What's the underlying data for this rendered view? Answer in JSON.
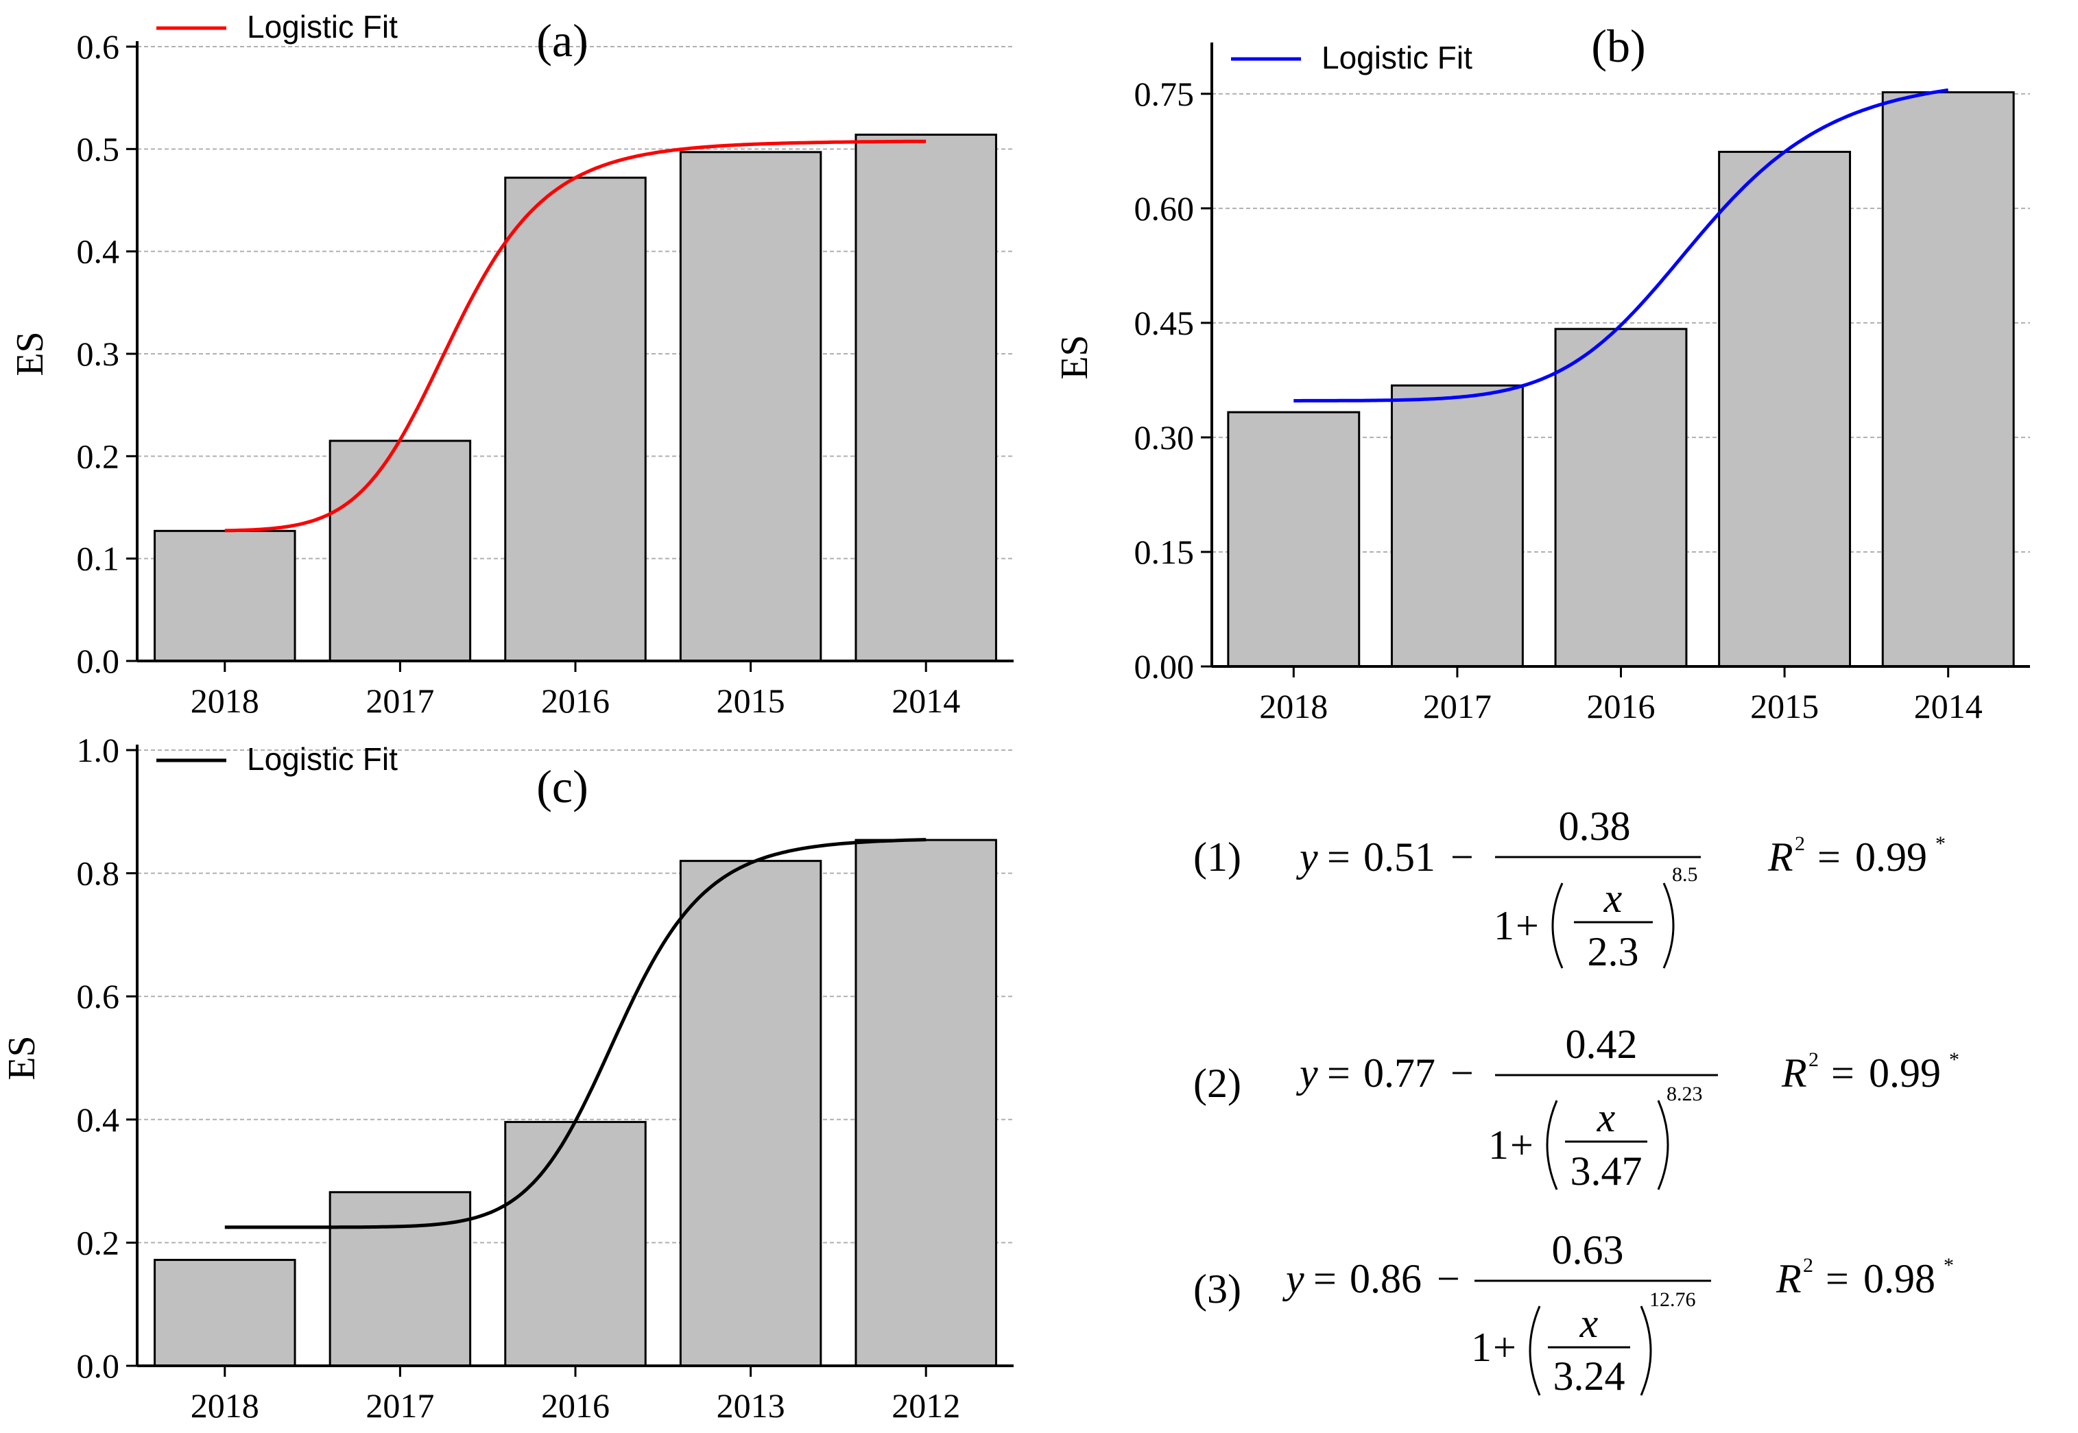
{
  "chart_data": [
    {
      "id": "a",
      "type": "bar",
      "panel_label": "(a)",
      "ylabel": "ES",
      "categories": [
        "2018",
        "2017",
        "2016",
        "2015",
        "2014"
      ],
      "values": [
        0.127,
        0.215,
        0.472,
        0.497,
        0.514
      ],
      "ylim": [
        0,
        0.6
      ],
      "yticks": [
        "0.0",
        "0.1",
        "0.2",
        "0.3",
        "0.4",
        "0.5",
        "0.6"
      ],
      "grid": true,
      "legend": "Logistic Fit",
      "legend_position": "top-left",
      "fit": {
        "A1": 0.127,
        "A2": 0.508,
        "x0": 2.3,
        "p": 8.5,
        "color": "#ff0000"
      }
    },
    {
      "id": "b",
      "type": "bar",
      "panel_label": "(b)",
      "ylabel": "ES",
      "categories": [
        "2018",
        "2017",
        "2016",
        "2015",
        "2014"
      ],
      "values": [
        0.333,
        0.368,
        0.442,
        0.674,
        0.752
      ],
      "ylim": [
        0,
        0.81
      ],
      "yticks": [
        "0.00",
        "0.15",
        "0.30",
        "0.45",
        "0.60",
        "0.75"
      ],
      "ytick_values": [
        0,
        0.15,
        0.3,
        0.45,
        0.6,
        0.75
      ],
      "grid": true,
      "legend": "Logistic Fit",
      "legend_position": "top-left",
      "fit": {
        "A1": 0.348,
        "A2": 0.775,
        "x0": 3.47,
        "p": 8.23,
        "color": "#0000ff"
      }
    },
    {
      "id": "c",
      "type": "bar",
      "panel_label": "(c)",
      "ylabel": "ES",
      "categories": [
        "2018",
        "2017",
        "2016",
        "2013",
        "2012"
      ],
      "values": [
        0.172,
        0.282,
        0.396,
        0.82,
        0.854
      ],
      "ylim": [
        0,
        1.0
      ],
      "yticks": [
        "0.0",
        "0.2",
        "0.4",
        "0.6",
        "0.8",
        "1.0"
      ],
      "grid": true,
      "legend": "Logistic Fit",
      "legend_position": "top-left",
      "fit": {
        "A1": 0.225,
        "A2": 0.857,
        "x0": 3.24,
        "p": 12.76,
        "color": "#000000"
      }
    }
  ],
  "equations": [
    {
      "number": "(1)",
      "y_label": "y",
      "intercept": "0.51",
      "numerator": "0.38",
      "one": "1",
      "x_var": "x",
      "denominator": "2.3",
      "exponent": "8.5",
      "r2_label": "R",
      "r2_exp": "2",
      "r2_value": "0.99",
      "star": "*"
    },
    {
      "number": "(2)",
      "y_label": "y",
      "intercept": "0.77",
      "numerator": "0.42",
      "one": "1",
      "x_var": "x",
      "denominator": "3.47",
      "exponent": "8.23",
      "r2_label": "R",
      "r2_exp": "2",
      "r2_value": "0.99",
      "star": "*"
    },
    {
      "number": "(3)",
      "y_label": "y",
      "intercept": "0.86",
      "numerator": "0.63",
      "one": "1",
      "x_var": "x",
      "denominator": "3.24",
      "exponent": "12.76",
      "r2_label": "R",
      "r2_exp": "2",
      "r2_value": "0.98",
      "star": "*"
    }
  ],
  "colors": {
    "bar_fill": "#c0c0c0",
    "bar_stroke": "#000000",
    "grid": "#b0b0b0"
  }
}
